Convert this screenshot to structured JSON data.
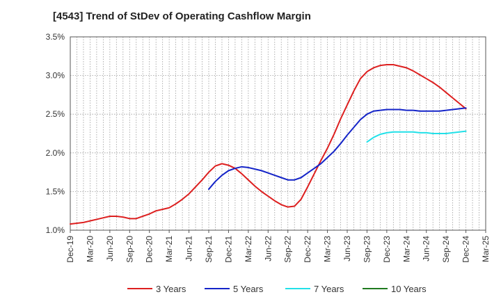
{
  "title": "[4543]  Trend of StDev of Operating Cashflow Margin",
  "chart_data": {
    "type": "line",
    "title": "[4543]  Trend of StDev of Operating Cashflow Margin",
    "xlabel": "",
    "ylabel": "",
    "ylim": [
      1.0,
      3.5
    ],
    "y_ticks": [
      "1.0%",
      "1.5%",
      "2.0%",
      "2.5%",
      "3.0%",
      "3.5%"
    ],
    "y_tick_values": [
      1.0,
      1.5,
      2.0,
      2.5,
      3.0,
      3.5
    ],
    "x_tick_labels": [
      "Dec-19",
      "Mar-20",
      "Jun-20",
      "Sep-20",
      "Dec-20",
      "Mar-21",
      "Jun-21",
      "Sep-21",
      "Dec-21",
      "Mar-22",
      "Jun-22",
      "Sep-22",
      "Dec-22",
      "Mar-23",
      "Jun-23",
      "Sep-23",
      "Dec-23",
      "Mar-24",
      "Jun-24",
      "Sep-24",
      "Dec-24",
      "Mar-25"
    ],
    "grid": true,
    "legend_position": "bottom",
    "series": [
      {
        "name": "3 Years",
        "color": "#dd1f1f",
        "points": [
          [
            "Dec-19",
            1.08
          ],
          [
            "Jan-20",
            1.09
          ],
          [
            "Feb-20",
            1.1
          ],
          [
            "Mar-20",
            1.12
          ],
          [
            "Apr-20",
            1.14
          ],
          [
            "May-20",
            1.16
          ],
          [
            "Jun-20",
            1.18
          ],
          [
            "Jul-20",
            1.18
          ],
          [
            "Aug-20",
            1.17
          ],
          [
            "Sep-20",
            1.15
          ],
          [
            "Oct-20",
            1.15
          ],
          [
            "Nov-20",
            1.18
          ],
          [
            "Dec-20",
            1.21
          ],
          [
            "Jan-21",
            1.25
          ],
          [
            "Feb-21",
            1.27
          ],
          [
            "Mar-21",
            1.29
          ],
          [
            "Apr-21",
            1.34
          ],
          [
            "May-21",
            1.4
          ],
          [
            "Jun-21",
            1.47
          ],
          [
            "Jul-21",
            1.56
          ],
          [
            "Aug-21",
            1.65
          ],
          [
            "Sep-21",
            1.75
          ],
          [
            "Oct-21",
            1.83
          ],
          [
            "Nov-21",
            1.86
          ],
          [
            "Dec-21",
            1.84
          ],
          [
            "Jan-22",
            1.8
          ],
          [
            "Feb-22",
            1.73
          ],
          [
            "Mar-22",
            1.65
          ],
          [
            "Apr-22",
            1.57
          ],
          [
            "May-22",
            1.5
          ],
          [
            "Jun-22",
            1.44
          ],
          [
            "Jul-22",
            1.38
          ],
          [
            "Aug-22",
            1.33
          ],
          [
            "Sep-22",
            1.3
          ],
          [
            "Oct-22",
            1.31
          ],
          [
            "Nov-22",
            1.4
          ],
          [
            "Dec-22",
            1.56
          ],
          [
            "Jan-23",
            1.73
          ],
          [
            "Feb-23",
            1.9
          ],
          [
            "Mar-23",
            2.06
          ],
          [
            "Apr-23",
            2.24
          ],
          [
            "May-23",
            2.44
          ],
          [
            "Jun-23",
            2.62
          ],
          [
            "Jul-23",
            2.8
          ],
          [
            "Aug-23",
            2.96
          ],
          [
            "Sep-23",
            3.05
          ],
          [
            "Oct-23",
            3.1
          ],
          [
            "Nov-23",
            3.13
          ],
          [
            "Dec-23",
            3.14
          ],
          [
            "Jan-24",
            3.14
          ],
          [
            "Feb-24",
            3.12
          ],
          [
            "Mar-24",
            3.1
          ],
          [
            "Apr-24",
            3.06
          ],
          [
            "May-24",
            3.01
          ],
          [
            "Jun-24",
            2.96
          ],
          [
            "Jul-24",
            2.91
          ],
          [
            "Aug-24",
            2.85
          ],
          [
            "Sep-24",
            2.78
          ],
          [
            "Oct-24",
            2.71
          ],
          [
            "Nov-24",
            2.64
          ],
          [
            "Dec-24",
            2.57
          ]
        ]
      },
      {
        "name": "5 Years",
        "color": "#1424c8",
        "points": [
          [
            "Sep-21",
            1.53
          ],
          [
            "Oct-21",
            1.63
          ],
          [
            "Nov-21",
            1.71
          ],
          [
            "Dec-21",
            1.77
          ],
          [
            "Jan-22",
            1.8
          ],
          [
            "Feb-22",
            1.82
          ],
          [
            "Mar-22",
            1.81
          ],
          [
            "Apr-22",
            1.79
          ],
          [
            "May-22",
            1.77
          ],
          [
            "Jun-22",
            1.74
          ],
          [
            "Jul-22",
            1.71
          ],
          [
            "Aug-22",
            1.68
          ],
          [
            "Sep-22",
            1.65
          ],
          [
            "Oct-22",
            1.65
          ],
          [
            "Nov-22",
            1.68
          ],
          [
            "Dec-22",
            1.74
          ],
          [
            "Jan-23",
            1.8
          ],
          [
            "Feb-23",
            1.86
          ],
          [
            "Mar-23",
            1.94
          ],
          [
            "Apr-23",
            2.02
          ],
          [
            "May-23",
            2.12
          ],
          [
            "Jun-23",
            2.23
          ],
          [
            "Jul-23",
            2.33
          ],
          [
            "Aug-23",
            2.43
          ],
          [
            "Sep-23",
            2.5
          ],
          [
            "Oct-23",
            2.54
          ],
          [
            "Nov-23",
            2.55
          ],
          [
            "Dec-23",
            2.56
          ],
          [
            "Jan-24",
            2.56
          ],
          [
            "Feb-24",
            2.56
          ],
          [
            "Mar-24",
            2.55
          ],
          [
            "Apr-24",
            2.55
          ],
          [
            "May-24",
            2.54
          ],
          [
            "Jun-24",
            2.54
          ],
          [
            "Jul-24",
            2.54
          ],
          [
            "Aug-24",
            2.54
          ],
          [
            "Sep-24",
            2.55
          ],
          [
            "Oct-24",
            2.56
          ],
          [
            "Nov-24",
            2.57
          ],
          [
            "Dec-24",
            2.58
          ]
        ]
      },
      {
        "name": "7 Years",
        "color": "#22e0e8",
        "points": [
          [
            "Sep-23",
            2.14
          ],
          [
            "Oct-23",
            2.2
          ],
          [
            "Nov-23",
            2.24
          ],
          [
            "Dec-23",
            2.26
          ],
          [
            "Jan-24",
            2.27
          ],
          [
            "Feb-24",
            2.27
          ],
          [
            "Mar-24",
            2.27
          ],
          [
            "Apr-24",
            2.27
          ],
          [
            "May-24",
            2.26
          ],
          [
            "Jun-24",
            2.26
          ],
          [
            "Jul-24",
            2.25
          ],
          [
            "Aug-24",
            2.25
          ],
          [
            "Sep-24",
            2.25
          ],
          [
            "Oct-24",
            2.26
          ],
          [
            "Nov-24",
            2.27
          ],
          [
            "Dec-24",
            2.28
          ]
        ]
      },
      {
        "name": "10 Years",
        "color": "#1f7a1f",
        "points": []
      }
    ]
  }
}
